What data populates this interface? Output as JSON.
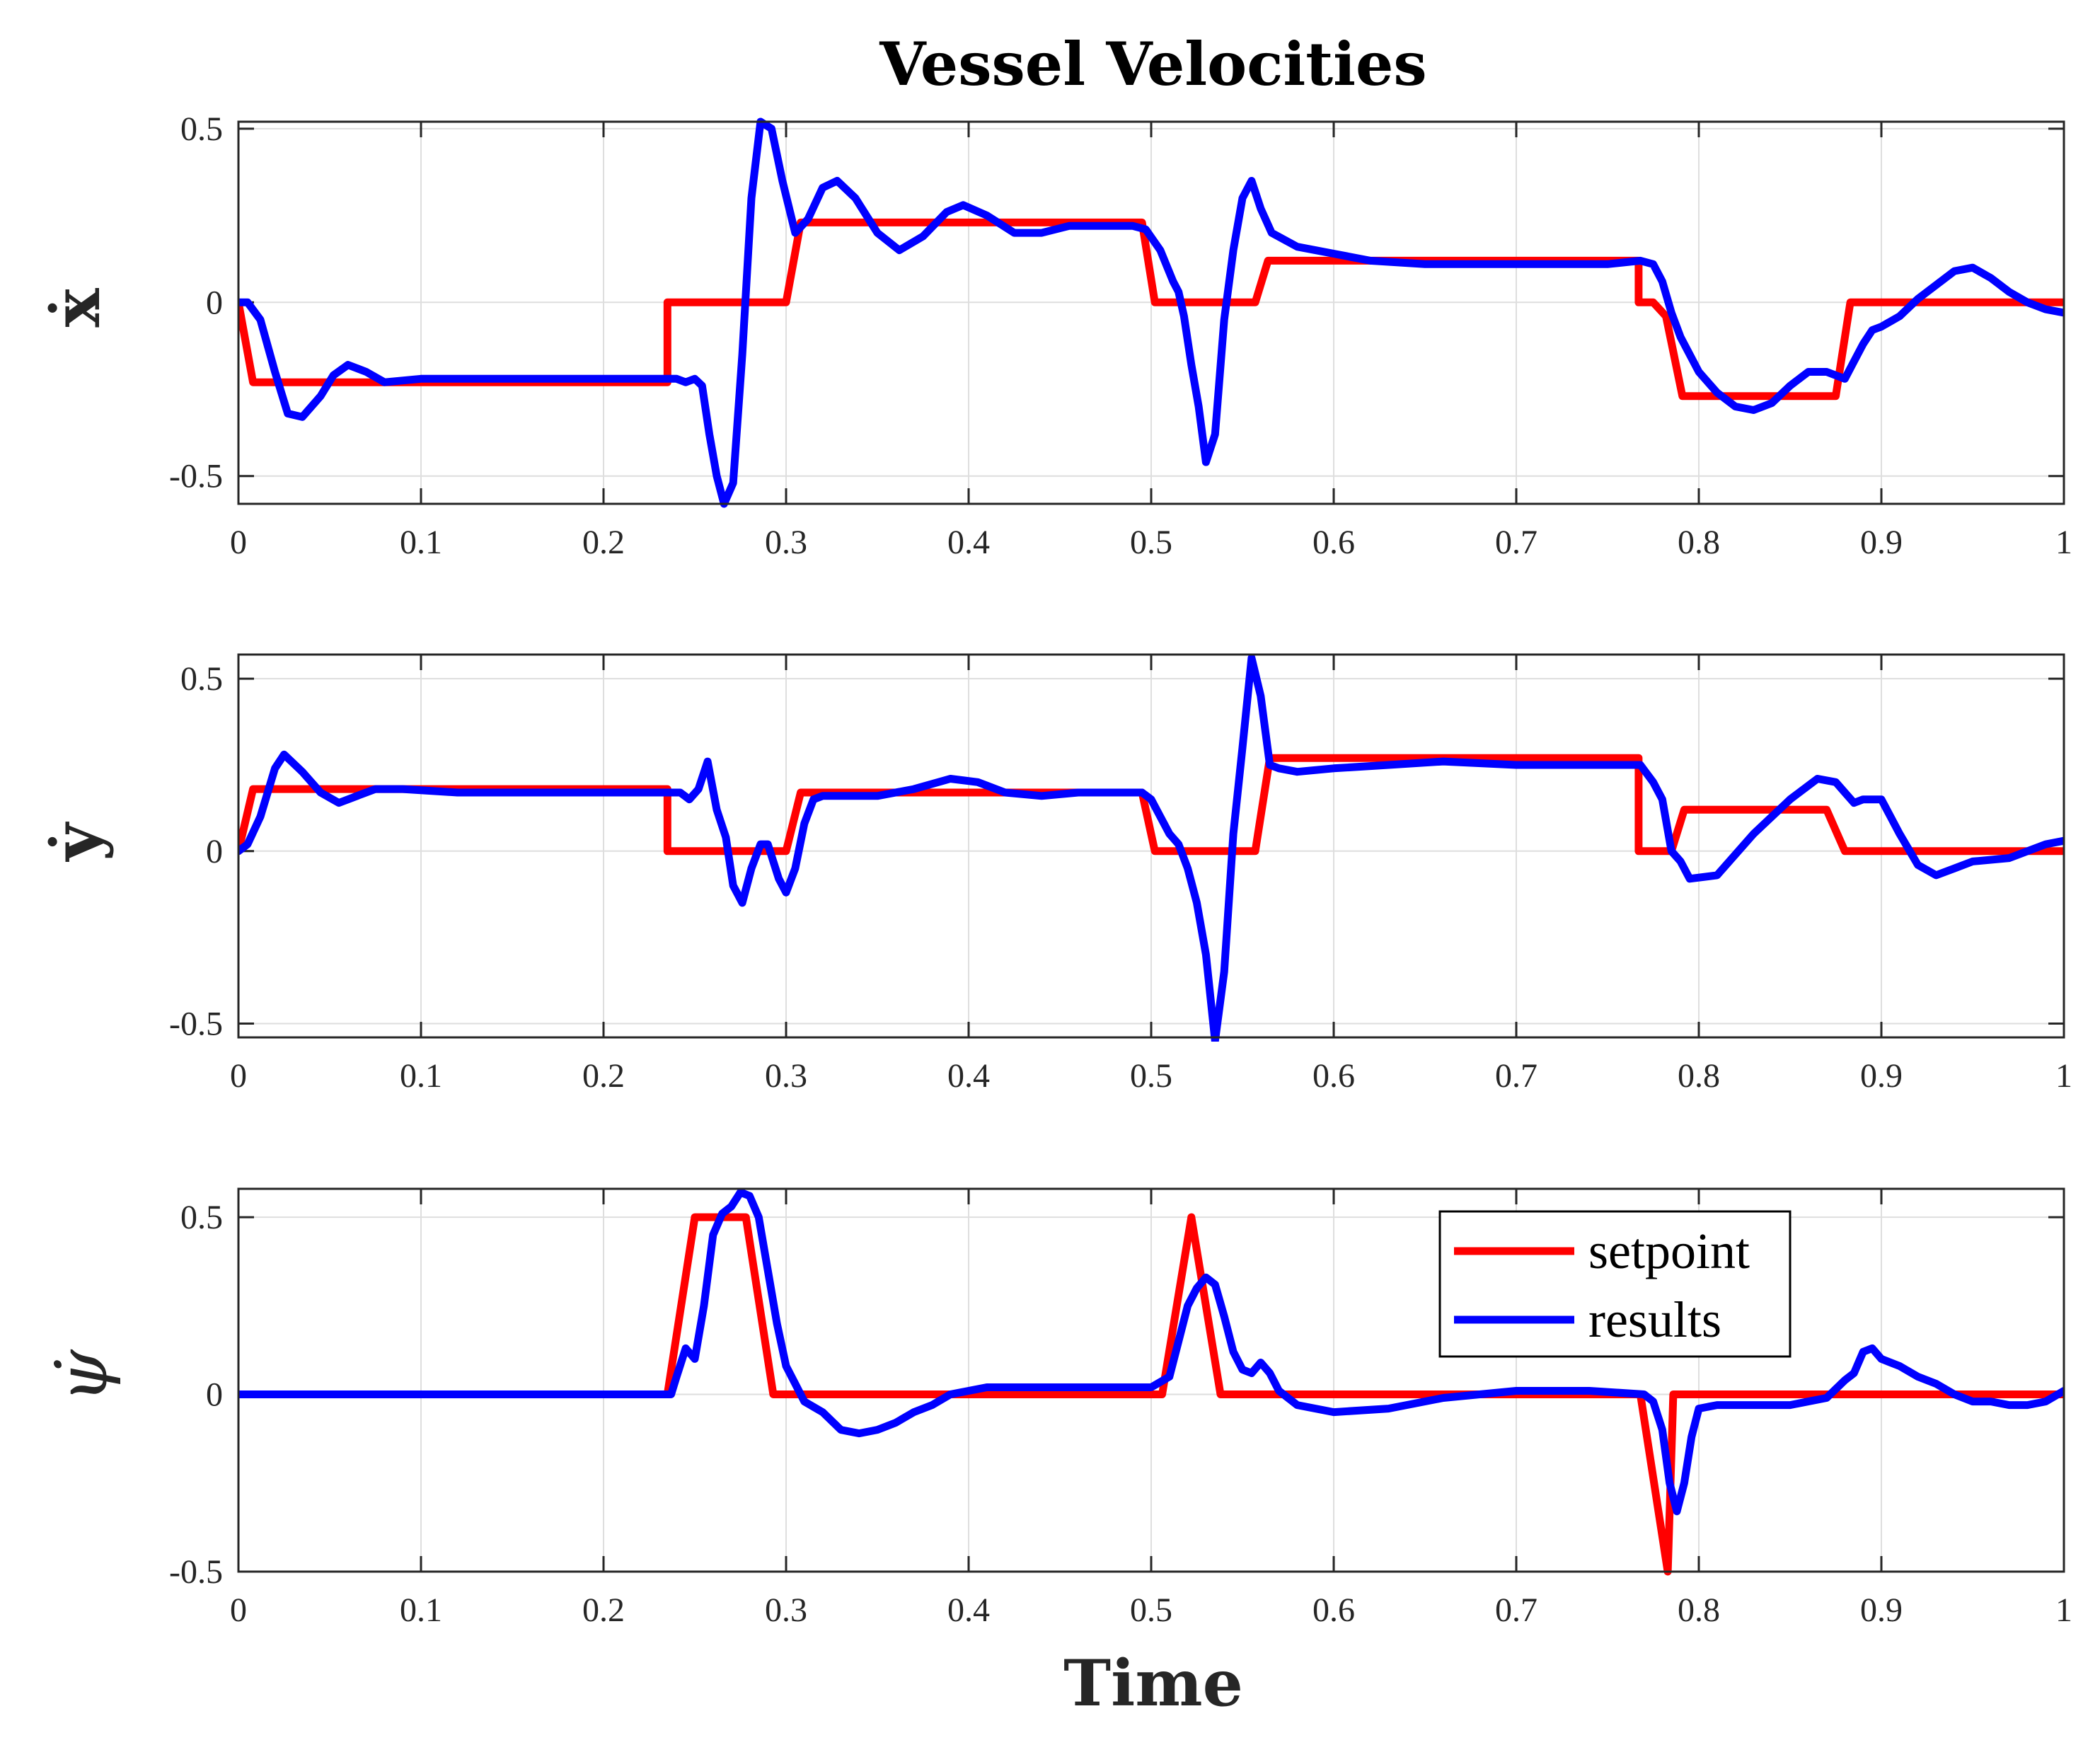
{
  "title": "Vessel Velocities",
  "xlabel": "Time",
  "colors": {
    "setpoint": "#ff0000",
    "results": "#0000ff"
  },
  "legend": {
    "setpoint": "setpoint",
    "results": "results",
    "location": "top-right of bottom panel"
  },
  "chart_data": [
    {
      "type": "line",
      "ylabel": "ẋ",
      "xlim": [
        0,
        1
      ],
      "ylim": [
        -0.58,
        0.52
      ],
      "xticks": [
        0,
        0.1,
        0.2,
        0.3,
        0.4,
        0.5,
        0.6,
        0.7,
        0.8,
        0.9,
        1
      ],
      "xtick_labels": [
        "0",
        "0.1",
        "0.2",
        "0.3",
        "0.4",
        "0.5",
        "0.6",
        "0.7",
        "0.8",
        "0.9",
        "1"
      ],
      "yticks": [
        -0.5,
        0,
        0.5
      ],
      "ytick_labels": [
        "-0.5",
        "0",
        "0.5"
      ],
      "grid": true,
      "series": [
        {
          "name": "setpoint",
          "x": [
            0,
            0.008,
            0.235,
            0.235,
            0.3,
            0.308,
            0.495,
            0.502,
            0.557,
            0.564,
            0.767,
            0.767,
            0.775,
            0.782,
            0.791,
            0.875,
            0.883,
            1
          ],
          "y": [
            0,
            -0.23,
            -0.23,
            0,
            0,
            0.23,
            0.23,
            0,
            0,
            0.12,
            0.12,
            0,
            0,
            -0.04,
            -0.27,
            -0.27,
            0,
            0
          ]
        },
        {
          "name": "results",
          "x": [
            0,
            0.005,
            0.012,
            0.02,
            0.027,
            0.035,
            0.045,
            0.052,
            0.06,
            0.07,
            0.08,
            0.1,
            0.15,
            0.2,
            0.235,
            0.24,
            0.245,
            0.25,
            0.254,
            0.258,
            0.262,
            0.266,
            0.271,
            0.276,
            0.281,
            0.286,
            0.292,
            0.298,
            0.305,
            0.312,
            0.32,
            0.328,
            0.338,
            0.35,
            0.362,
            0.375,
            0.388,
            0.397,
            0.41,
            0.425,
            0.44,
            0.455,
            0.47,
            0.49,
            0.497,
            0.505,
            0.512,
            0.515,
            0.518,
            0.522,
            0.526,
            0.53,
            0.535,
            0.54,
            0.545,
            0.55,
            0.555,
            0.56,
            0.566,
            0.58,
            0.6,
            0.62,
            0.65,
            0.7,
            0.75,
            0.768,
            0.775,
            0.78,
            0.785,
            0.79,
            0.8,
            0.81,
            0.82,
            0.83,
            0.84,
            0.85,
            0.86,
            0.87,
            0.88,
            0.885,
            0.89,
            0.895,
            0.9,
            0.91,
            0.92,
            0.93,
            0.94,
            0.95,
            0.96,
            0.97,
            0.98,
            0.99,
            1
          ],
          "y": [
            0,
            0,
            -0.05,
            -0.2,
            -0.32,
            -0.33,
            -0.27,
            -0.21,
            -0.18,
            -0.2,
            -0.23,
            -0.22,
            -0.22,
            -0.22,
            -0.22,
            -0.22,
            -0.23,
            -0.22,
            -0.24,
            -0.38,
            -0.5,
            -0.58,
            -0.52,
            -0.15,
            0.3,
            0.52,
            0.5,
            0.35,
            0.2,
            0.24,
            0.33,
            0.35,
            0.3,
            0.2,
            0.15,
            0.19,
            0.26,
            0.28,
            0.25,
            0.2,
            0.2,
            0.22,
            0.22,
            0.22,
            0.21,
            0.15,
            0.06,
            0.03,
            -0.04,
            -0.18,
            -0.3,
            -0.46,
            -0.38,
            -0.05,
            0.15,
            0.3,
            0.35,
            0.27,
            0.2,
            0.16,
            0.14,
            0.12,
            0.11,
            0.11,
            0.11,
            0.12,
            0.11,
            0.06,
            -0.03,
            -0.1,
            -0.2,
            -0.26,
            -0.3,
            -0.31,
            -0.29,
            -0.24,
            -0.2,
            -0.2,
            -0.22,
            -0.17,
            -0.12,
            -0.08,
            -0.07,
            -0.04,
            0.01,
            0.05,
            0.09,
            0.1,
            0.07,
            0.03,
            0,
            -0.02,
            -0.03
          ]
        }
      ]
    },
    {
      "type": "line",
      "ylabel": "ẏ",
      "xlim": [
        0,
        1
      ],
      "ylim": [
        -0.54,
        0.57
      ],
      "xticks": [
        0,
        0.1,
        0.2,
        0.3,
        0.4,
        0.5,
        0.6,
        0.7,
        0.8,
        0.9,
        1
      ],
      "xtick_labels": [
        "0",
        "0.1",
        "0.2",
        "0.3",
        "0.4",
        "0.5",
        "0.6",
        "0.7",
        "0.8",
        "0.9",
        "1"
      ],
      "yticks": [
        -0.5,
        0,
        0.5
      ],
      "ytick_labels": [
        "-0.5",
        "0",
        "0.5"
      ],
      "grid": true,
      "series": [
        {
          "name": "setpoint",
          "x": [
            0,
            0.008,
            0.235,
            0.235,
            0.3,
            0.308,
            0.495,
            0.502,
            0.557,
            0.565,
            0.767,
            0.767,
            0.785,
            0.792,
            0.87,
            0.88,
            1
          ],
          "y": [
            0,
            0.18,
            0.18,
            0,
            0,
            0.17,
            0.17,
            0,
            0,
            0.27,
            0.27,
            0,
            0,
            0.12,
            0.12,
            0,
            0
          ]
        },
        {
          "name": "results",
          "x": [
            0,
            0.005,
            0.012,
            0.02,
            0.025,
            0.035,
            0.045,
            0.055,
            0.065,
            0.075,
            0.09,
            0.12,
            0.17,
            0.22,
            0.235,
            0.242,
            0.247,
            0.252,
            0.257,
            0.262,
            0.267,
            0.271,
            0.276,
            0.281,
            0.286,
            0.29,
            0.296,
            0.3,
            0.305,
            0.31,
            0.315,
            0.32,
            0.33,
            0.35,
            0.37,
            0.39,
            0.405,
            0.42,
            0.44,
            0.46,
            0.48,
            0.495,
            0.5,
            0.505,
            0.51,
            0.515,
            0.52,
            0.525,
            0.53,
            0.535,
            0.54,
            0.545,
            0.55,
            0.555,
            0.56,
            0.565,
            0.57,
            0.58,
            0.6,
            0.63,
            0.66,
            0.7,
            0.74,
            0.768,
            0.775,
            0.78,
            0.785,
            0.79,
            0.795,
            0.81,
            0.83,
            0.85,
            0.865,
            0.875,
            0.88,
            0.885,
            0.89,
            0.9,
            0.91,
            0.92,
            0.93,
            0.94,
            0.95,
            0.97,
            0.99,
            1
          ],
          "y": [
            0,
            0.02,
            0.1,
            0.24,
            0.28,
            0.23,
            0.17,
            0.14,
            0.16,
            0.18,
            0.18,
            0.17,
            0.17,
            0.17,
            0.17,
            0.17,
            0.15,
            0.18,
            0.26,
            0.12,
            0.04,
            -0.1,
            -0.15,
            -0.05,
            0.02,
            0.02,
            -0.08,
            -0.12,
            -0.05,
            0.08,
            0.15,
            0.16,
            0.16,
            0.16,
            0.18,
            0.21,
            0.2,
            0.17,
            0.16,
            0.17,
            0.17,
            0.17,
            0.15,
            0.1,
            0.05,
            0.02,
            -0.05,
            -0.15,
            -0.3,
            -0.55,
            -0.35,
            0.05,
            0.3,
            0.56,
            0.45,
            0.25,
            0.24,
            0.23,
            0.24,
            0.25,
            0.26,
            0.25,
            0.25,
            0.25,
            0.2,
            0.15,
            0,
            -0.03,
            -0.08,
            -0.07,
            0.05,
            0.15,
            0.21,
            0.2,
            0.17,
            0.14,
            0.15,
            0.15,
            0.05,
            -0.04,
            -0.07,
            -0.05,
            -0.03,
            -0.02,
            0.02,
            0.03
          ]
        }
      ]
    },
    {
      "type": "line",
      "ylabel": "ψ̇",
      "xlim": [
        0,
        1
      ],
      "ylim": [
        -0.5,
        0.58
      ],
      "xticks": [
        0,
        0.1,
        0.2,
        0.3,
        0.4,
        0.5,
        0.6,
        0.7,
        0.8,
        0.9,
        1
      ],
      "xtick_labels": [
        "0",
        "0.1",
        "0.2",
        "0.3",
        "0.4",
        "0.5",
        "0.6",
        "0.7",
        "0.8",
        "0.9",
        "1"
      ],
      "yticks": [
        -0.5,
        0,
        0.5
      ],
      "ytick_labels": [
        "-0.5",
        "0",
        "0.5"
      ],
      "grid": true,
      "series": [
        {
          "name": "setpoint",
          "x": [
            0,
            0.235,
            0.25,
            0.278,
            0.293,
            0.506,
            0.522,
            0.538,
            0.768,
            0.783,
            0.786,
            0.786,
            1
          ],
          "y": [
            0,
            0,
            0.5,
            0.5,
            0,
            0,
            0.5,
            0,
            0,
            -0.5,
            0,
            0,
            0
          ]
        },
        {
          "name": "results",
          "x": [
            0,
            0.2,
            0.237,
            0.24,
            0.245,
            0.25,
            0.255,
            0.26,
            0.265,
            0.27,
            0.275,
            0.28,
            0.285,
            0.29,
            0.295,
            0.3,
            0.305,
            0.31,
            0.32,
            0.33,
            0.34,
            0.35,
            0.36,
            0.37,
            0.38,
            0.39,
            0.4,
            0.41,
            0.43,
            0.45,
            0.47,
            0.49,
            0.5,
            0.51,
            0.515,
            0.52,
            0.525,
            0.53,
            0.535,
            0.54,
            0.545,
            0.55,
            0.555,
            0.56,
            0.565,
            0.57,
            0.58,
            0.6,
            0.63,
            0.66,
            0.7,
            0.74,
            0.77,
            0.775,
            0.78,
            0.784,
            0.788,
            0.792,
            0.796,
            0.8,
            0.81,
            0.83,
            0.85,
            0.87,
            0.88,
            0.885,
            0.89,
            0.895,
            0.9,
            0.91,
            0.92,
            0.93,
            0.94,
            0.95,
            0.96,
            0.97,
            0.98,
            0.99,
            1
          ],
          "y": [
            0,
            0,
            0,
            0.05,
            0.13,
            0.1,
            0.25,
            0.45,
            0.51,
            0.53,
            0.57,
            0.56,
            0.5,
            0.35,
            0.2,
            0.08,
            0.03,
            -0.02,
            -0.05,
            -0.1,
            -0.11,
            -0.1,
            -0.08,
            -0.05,
            -0.03,
            0,
            0.01,
            0.02,
            0.02,
            0.02,
            0.02,
            0.02,
            0.02,
            0.05,
            0.15,
            0.25,
            0.3,
            0.33,
            0.31,
            0.22,
            0.12,
            0.07,
            0.06,
            0.09,
            0.06,
            0.01,
            -0.03,
            -0.05,
            -0.04,
            -0.01,
            0.01,
            0.01,
            0,
            -0.02,
            -0.1,
            -0.25,
            -0.33,
            -0.25,
            -0.12,
            -0.04,
            -0.03,
            -0.03,
            -0.03,
            -0.01,
            0.04,
            0.06,
            0.12,
            0.13,
            0.1,
            0.08,
            0.05,
            0.03,
            0,
            -0.02,
            -0.02,
            -0.03,
            -0.03,
            -0.02,
            0.01
          ]
        }
      ]
    }
  ]
}
